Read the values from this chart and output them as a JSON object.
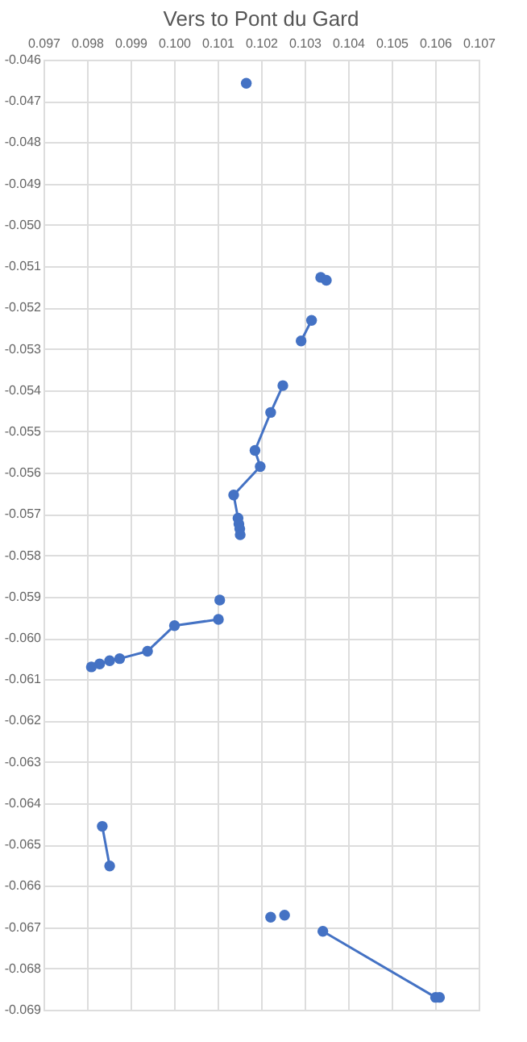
{
  "chart_data": {
    "type": "line",
    "title": "Vers to Pont du Gard",
    "marker": "circle",
    "grid": true,
    "xlim": [
      0.097,
      0.107
    ],
    "xticks": [
      0.097,
      0.098,
      0.099,
      {
        "value": 0.1,
        "label": "0.100"
      },
      0.101,
      0.102,
      0.103,
      0.104,
      0.105,
      0.106,
      0.107
    ],
    "ylim": [
      -0.069,
      -0.046
    ],
    "yticks": [
      -0.069,
      -0.068,
      -0.067,
      -0.066,
      -0.065,
      -0.064,
      -0.063,
      -0.062,
      -0.061,
      {
        "value": -0.06,
        "label": "-0.060"
      },
      -0.059,
      -0.058,
      -0.057,
      -0.056,
      -0.055,
      -0.054,
      -0.053,
      -0.052,
      -0.051,
      {
        "value": -0.05,
        "label": "-0.050"
      },
      -0.049,
      -0.048,
      -0.047,
      -0.046
    ],
    "series": [
      {
        "color": "#4472c4",
        "x": [
          0.10166,
          null,
          0.10337,
          null,
          0.1035,
          null,
          0.10316,
          0.10292,
          null,
          0.1025,
          0.10222,
          0.10186,
          0.10198,
          0.10137,
          0.10147,
          0.10149,
          0.10151,
          0.10152,
          null,
          0.10105,
          null,
          0.10102,
          0.10001,
          0.09939,
          0.09875,
          0.09852,
          0.09829,
          0.0981,
          null,
          0.09835,
          0.09852,
          null,
          0.10222,
          null,
          0.10254,
          null,
          0.10342,
          0.10601,
          0.1061
        ],
        "values": [
          -0.04657,
          null,
          -0.05127,
          null,
          -0.05134,
          null,
          -0.05231,
          -0.05281,
          null,
          -0.05389,
          -0.05454,
          -0.05546,
          -0.05585,
          -0.05654,
          -0.0571,
          -0.05724,
          -0.05736,
          -0.0575,
          null,
          -0.05908,
          null,
          -0.05955,
          -0.0597,
          -0.06032,
          -0.0605,
          -0.06055,
          -0.06063,
          -0.0607,
          null,
          -0.06456,
          -0.06552,
          null,
          -0.06676,
          null,
          -0.06671,
          null,
          -0.0671,
          -0.0687,
          -0.0687
        ]
      }
    ]
  }
}
